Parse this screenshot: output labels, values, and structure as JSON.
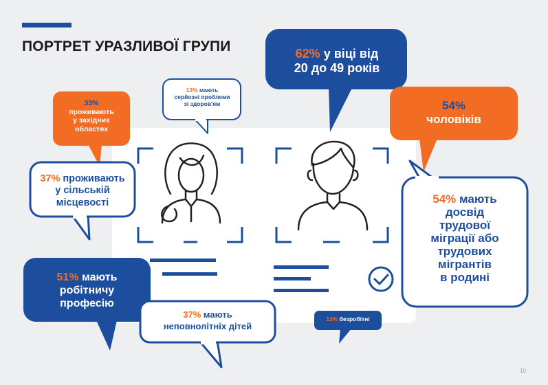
{
  "title": "ПОРТРЕТ УРАЗЛИВОЇ ГРУПИ",
  "page_number": "10",
  "colors": {
    "blue": "#1d4e9e",
    "orange": "#f26c24",
    "background": "#eeeff0",
    "card": "#ffffff"
  },
  "icons": [
    "woman-portrait-icon",
    "man-portrait-icon",
    "check-circle-icon"
  ],
  "bubbles": {
    "age": {
      "pct": "62%",
      "text_line1": "у віці від",
      "text_line2": "20 до 49 років"
    },
    "men": {
      "pct": "54%",
      "text": "чоловіків"
    },
    "migration": {
      "pct": "54%",
      "text_first": "мають",
      "lines": [
        "досвід",
        "трудової",
        "міграції або",
        "трудових",
        "мігрантів",
        "в родині"
      ]
    },
    "west": {
      "pct": "33%",
      "lines": [
        "проживають",
        "у західних",
        "областях"
      ]
    },
    "health": {
      "pct": "13%",
      "text_first": "мають",
      "lines": [
        "серйозні проблеми",
        "зі здоров'ям"
      ]
    },
    "rural": {
      "pct": "37%",
      "text_first": "проживають",
      "lines": [
        "у сільській",
        "місцевості"
      ]
    },
    "worker": {
      "pct": "51%",
      "text_first": "мають",
      "lines": [
        "робітничу",
        "професію"
      ]
    },
    "children": {
      "pct": "37%",
      "text_first": "мають",
      "text_line2": "неповнолітніх дітей"
    },
    "unemployed": {
      "pct": "13%",
      "text": "безробітні"
    }
  }
}
